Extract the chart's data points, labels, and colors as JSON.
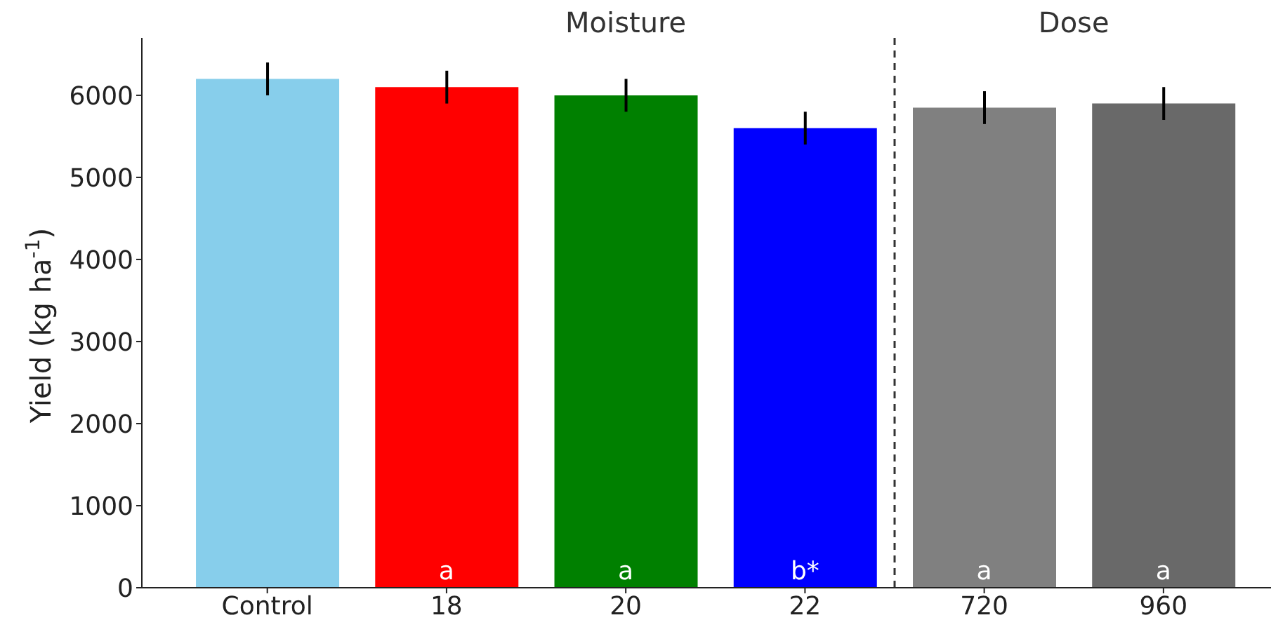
{
  "chart_data": {
    "type": "bar",
    "ylabel": "Yield (kg ha$^{-1}$)",
    "categories": [
      "Control",
      "18",
      "20",
      "22",
      "720",
      "960"
    ],
    "values": [
      6200,
      6100,
      6000,
      5600,
      5850,
      5900
    ],
    "colors": [
      "#87ceeb",
      "#ff0000",
      "#008000",
      "#0000ff",
      "#808080",
      "#696969"
    ],
    "errors": [
      200,
      200,
      200,
      200,
      200,
      200
    ],
    "ylim": [
      0,
      6700
    ],
    "yticks": [
      0,
      1000,
      2000,
      3000,
      4000,
      5000,
      6000
    ],
    "grid": false,
    "legend": false,
    "annotations": [
      "Moisture",
      "Dose",
      {
        "text": "a",
        "x": "18",
        "y": 0
      },
      {
        "text": "a",
        "x": "20",
        "y": 0
      },
      {
        "text": "b*",
        "x": "22",
        "y": 0
      },
      {
        "text": "a",
        "x": "720",
        "y": 0
      },
      {
        "text": "a",
        "x": "960",
        "y": 0
      }
    ]
  }
}
